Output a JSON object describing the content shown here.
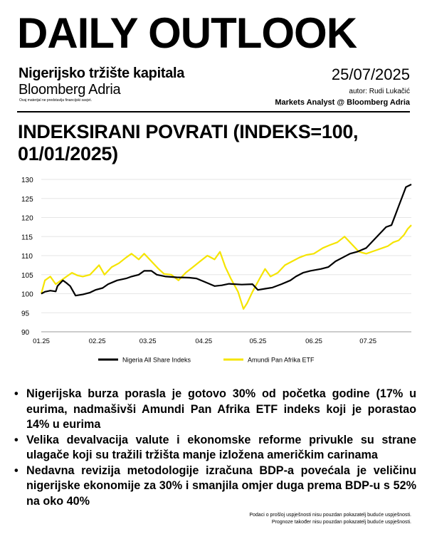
{
  "header": {
    "title": "DAILY OUTLOOK",
    "subtitle": "Nigerijsko tržište kapitala",
    "brand": "Bloomberg Adria",
    "small_note": "Ovaj materijal ne predstavlja financijski savjet.",
    "date": "25/07/2025",
    "author": "autor: Rudi Lukačić",
    "analyst": "Markets Analyst @ Bloomberg Adria"
  },
  "chart_data": {
    "type": "line",
    "title": "INDEKSIRANI POVRATI (INDEKS=100, 01/01/2025)",
    "ylim": [
      90,
      130
    ],
    "y_ticks": [
      "130",
      "125",
      "120",
      "115",
      "110",
      "105",
      "100",
      "95",
      "90"
    ],
    "x_ticks": [
      "01.25",
      "02.25",
      "03.25",
      "04.25",
      "05.25",
      "06.25",
      "07.25"
    ],
    "x_start": "2025-01-01",
    "x_end": "2025-07-25",
    "grid": true,
    "legend_position": "bottom",
    "series": [
      {
        "name": "Nigeria All Share Indeks",
        "color": "#000000",
        "points": [
          [
            "2025-01-01",
            100
          ],
          [
            "2025-01-03",
            100.5
          ],
          [
            "2025-01-06",
            100.8
          ],
          [
            "2025-01-09",
            100.6
          ],
          [
            "2025-01-10",
            102
          ],
          [
            "2025-01-13",
            103.5
          ],
          [
            "2025-01-15",
            102.8
          ],
          [
            "2025-01-17",
            102
          ],
          [
            "2025-01-20",
            99.5
          ],
          [
            "2025-01-24",
            99.8
          ],
          [
            "2025-01-28",
            100.3
          ],
          [
            "2025-01-31",
            101
          ],
          [
            "2025-02-04",
            101.5
          ],
          [
            "2025-02-07",
            102.5
          ],
          [
            "2025-02-12",
            103.5
          ],
          [
            "2025-02-17",
            104
          ],
          [
            "2025-02-20",
            104.5
          ],
          [
            "2025-02-24",
            105
          ],
          [
            "2025-02-27",
            106
          ],
          [
            "2025-03-03",
            106
          ],
          [
            "2025-03-06",
            105
          ],
          [
            "2025-03-11",
            104.5
          ],
          [
            "2025-03-17",
            104.3
          ],
          [
            "2025-03-24",
            104.2
          ],
          [
            "2025-03-28",
            104
          ],
          [
            "2025-04-02",
            103
          ],
          [
            "2025-04-07",
            102
          ],
          [
            "2025-04-11",
            102.2
          ],
          [
            "2025-04-15",
            102.6
          ],
          [
            "2025-04-22",
            102.4
          ],
          [
            "2025-04-28",
            102.5
          ],
          [
            "2025-05-01",
            101
          ],
          [
            "2025-05-05",
            101.3
          ],
          [
            "2025-05-09",
            101.6
          ],
          [
            "2025-05-14",
            102.5
          ],
          [
            "2025-05-19",
            103.5
          ],
          [
            "2025-05-22",
            104.5
          ],
          [
            "2025-05-26",
            105.5
          ],
          [
            "2025-05-30",
            106
          ],
          [
            "2025-06-05",
            106.5
          ],
          [
            "2025-06-09",
            107
          ],
          [
            "2025-06-13",
            108.5
          ],
          [
            "2025-06-17",
            109.5
          ],
          [
            "2025-06-21",
            110.5
          ],
          [
            "2025-06-25",
            111
          ],
          [
            "2025-06-30",
            112
          ],
          [
            "2025-07-03",
            113.5
          ],
          [
            "2025-07-06",
            115
          ],
          [
            "2025-07-09",
            116.5
          ],
          [
            "2025-07-11",
            117.5
          ],
          [
            "2025-07-14",
            118
          ],
          [
            "2025-07-16",
            120.5
          ],
          [
            "2025-07-18",
            123
          ],
          [
            "2025-07-20",
            125.5
          ],
          [
            "2025-07-22",
            128
          ],
          [
            "2025-07-25",
            128.7
          ]
        ]
      },
      {
        "name": "Amundi Pan Afrika ETF",
        "color": "#f5e400",
        "points": [
          [
            "2025-01-01",
            100
          ],
          [
            "2025-01-03",
            103.5
          ],
          [
            "2025-01-06",
            104.5
          ],
          [
            "2025-01-09",
            102.5
          ],
          [
            "2025-01-12",
            103.5
          ],
          [
            "2025-01-15",
            104.5
          ],
          [
            "2025-01-18",
            105.5
          ],
          [
            "2025-01-21",
            104.8
          ],
          [
            "2025-01-24",
            104.5
          ],
          [
            "2025-01-28",
            105
          ],
          [
            "2025-02-02",
            107.5
          ],
          [
            "2025-02-05",
            105
          ],
          [
            "2025-02-09",
            107
          ],
          [
            "2025-02-13",
            108
          ],
          [
            "2025-02-17",
            109.5
          ],
          [
            "2025-02-20",
            110.5
          ],
          [
            "2025-02-24",
            109
          ],
          [
            "2025-02-27",
            110.5
          ],
          [
            "2025-03-04",
            108
          ],
          [
            "2025-03-07",
            106.5
          ],
          [
            "2025-03-10",
            105.2
          ],
          [
            "2025-03-14",
            105
          ],
          [
            "2025-03-18",
            103.5
          ],
          [
            "2025-03-22",
            105.5
          ],
          [
            "2025-03-26",
            107
          ],
          [
            "2025-03-30",
            108.5
          ],
          [
            "2025-04-03",
            110
          ],
          [
            "2025-04-07",
            109
          ],
          [
            "2025-04-10",
            111
          ],
          [
            "2025-04-13",
            107
          ],
          [
            "2025-04-16",
            104
          ],
          [
            "2025-04-20",
            100.5
          ],
          [
            "2025-04-23",
            96
          ],
          [
            "2025-04-25",
            97.5
          ],
          [
            "2025-04-28",
            100.5
          ],
          [
            "2025-05-02",
            104
          ],
          [
            "2025-05-05",
            106.5
          ],
          [
            "2025-05-08",
            104.5
          ],
          [
            "2025-05-12",
            105.5
          ],
          [
            "2025-05-16",
            107.5
          ],
          [
            "2025-05-20",
            108.5
          ],
          [
            "2025-05-24",
            109.5
          ],
          [
            "2025-05-28",
            110.2
          ],
          [
            "2025-06-01",
            110.5
          ],
          [
            "2025-06-06",
            112
          ],
          [
            "2025-06-10",
            112.8
          ],
          [
            "2025-06-14",
            113.5
          ],
          [
            "2025-06-18",
            115
          ],
          [
            "2025-06-22",
            113
          ],
          [
            "2025-06-26",
            111
          ],
          [
            "2025-06-30",
            110.5
          ],
          [
            "2025-07-03",
            111
          ],
          [
            "2025-07-06",
            111.5
          ],
          [
            "2025-07-09",
            112
          ],
          [
            "2025-07-12",
            112.5
          ],
          [
            "2025-07-15",
            113.5
          ],
          [
            "2025-07-18",
            114
          ],
          [
            "2025-07-21",
            115.5
          ],
          [
            "2025-07-23",
            117
          ],
          [
            "2025-07-25",
            118
          ]
        ]
      }
    ]
  },
  "bullets": [
    "Nigerijska burza porasla je gotovo 30% od početka godine (17% u eurima, nadmašivši Amundi Pan Afrika ETF indeks koji je porastao 14% u eurima",
    "Velika devalvacija valute i ekonomske reforme privukle su strane ulagače koji su tražili tržišta manje izložena američkim carinama",
    "Nedavna revizija metodologije izračuna BDP-a povećala je veličinu nigerijske ekonomije za 30% i smanjila omjer duga prema BDP-u s 52% na oko 40%"
  ],
  "bullet_symbol": "•",
  "footer": {
    "line1": "Podaci o prošloj uspješnosti nisu pouzdan pokazatelj buduće uspješnosti.",
    "line2": "Prognoze također nisu pouzdan pokazatelj buduće uspješnosti."
  }
}
